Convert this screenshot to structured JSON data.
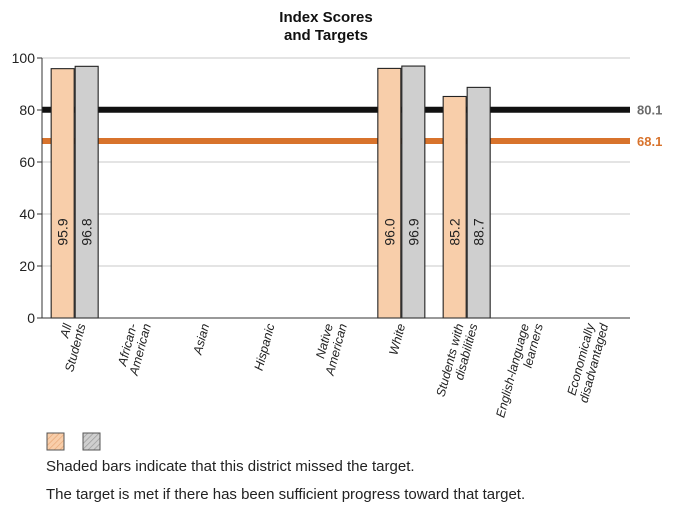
{
  "chart_data": {
    "type": "bar",
    "title": [
      "Index Scores",
      "and Targets"
    ],
    "xlabel": "",
    "ylabel": "",
    "ylim": [
      0,
      100
    ],
    "yticks": [
      0,
      20,
      40,
      60,
      80,
      100
    ],
    "categories": [
      [
        "All",
        "Students"
      ],
      [
        "African-",
        "American"
      ],
      [
        "Asian"
      ],
      [
        "Hispanic"
      ],
      [
        "Native",
        "American"
      ],
      [
        "White"
      ],
      [
        "Students with",
        "disabilities"
      ],
      [
        "English-language",
        "learners"
      ],
      [
        "Economically",
        "disadvantaged"
      ]
    ],
    "series": [
      {
        "color": "#f8ceaa",
        "hatch_color": "#e8a878",
        "values": [
          95.9,
          null,
          null,
          null,
          null,
          96.0,
          85.2,
          null,
          null
        ]
      },
      {
        "color": "#cfcfcf",
        "hatch_color": "#999999",
        "values": [
          96.8,
          null,
          null,
          null,
          null,
          96.9,
          88.7,
          null,
          null
        ]
      }
    ],
    "targets": [
      {
        "value": 80.1,
        "label": "80.1",
        "color": "#111111",
        "label_color": "#6b6b6b"
      },
      {
        "value": 68.1,
        "label": "68.1",
        "color": "#d8732c",
        "label_color": "#d8732c"
      }
    ],
    "grid": true,
    "legend_placement": "bottom-left"
  },
  "notes": [
    "Shaded bars indicate that this district missed the target.",
    "The target is met if there has been sufficient progress toward that target."
  ]
}
